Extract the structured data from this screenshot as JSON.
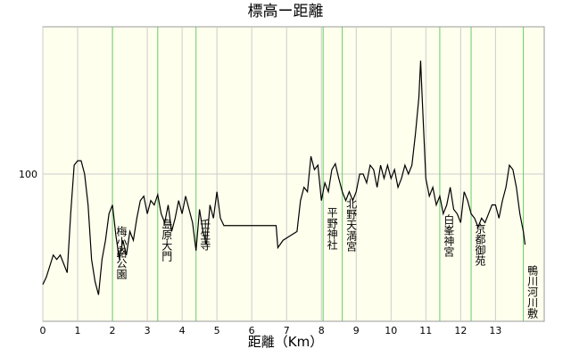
{
  "chart_data": {
    "type": "line",
    "title": "標高ー距離",
    "x_label": "距離（Km）",
    "xlim": [
      0,
      14.4
    ],
    "ylim": [
      0,
      200
    ],
    "xticks": [
      0,
      1,
      2,
      3,
      4,
      5,
      6,
      7,
      8,
      9,
      10,
      11,
      12,
      13
    ],
    "yticks": [
      100
    ],
    "grid": true,
    "series": [
      {
        "name": "標高",
        "color": "#000000",
        "x": [
          0,
          0.1,
          0.3,
          0.4,
          0.5,
          0.6,
          0.7,
          0.8,
          0.9,
          1.0,
          1.1,
          1.2,
          1.3,
          1.4,
          1.5,
          1.6,
          1.7,
          1.8,
          1.9,
          2.0,
          2.1,
          2.2,
          2.3,
          2.4,
          2.5,
          2.6,
          2.7,
          2.8,
          2.9,
          3.0,
          3.1,
          3.2,
          3.3,
          3.4,
          3.5,
          3.6,
          3.7,
          3.8,
          3.9,
          4.0,
          4.1,
          4.2,
          4.3,
          4.4,
          4.5,
          4.6,
          4.7,
          4.8,
          4.9,
          5.0,
          5.1,
          5.2,
          6.7,
          6.75,
          6.9,
          7.1,
          7.3,
          7.4,
          7.5,
          7.6,
          7.7,
          7.8,
          7.9,
          8.0,
          8.1,
          8.2,
          8.3,
          8.4,
          8.5,
          8.6,
          8.7,
          8.8,
          8.9,
          9.0,
          9.1,
          9.2,
          9.3,
          9.4,
          9.5,
          9.6,
          9.7,
          9.8,
          9.9,
          10.0,
          10.1,
          10.2,
          10.3,
          10.4,
          10.5,
          10.6,
          10.7,
          10.8,
          10.85,
          10.9,
          11.0,
          11.1,
          11.2,
          11.3,
          11.4,
          11.5,
          11.6,
          11.7,
          11.8,
          11.9,
          12.0,
          12.1,
          12.2,
          12.3,
          12.4,
          12.5,
          12.6,
          12.7,
          12.8,
          12.9,
          13.0,
          13.1,
          13.2,
          13.3,
          13.4,
          13.5,
          13.6,
          13.7,
          13.8,
          13.85
        ],
        "values": [
          25,
          30,
          45,
          42,
          45,
          39,
          33,
          73,
          106,
          109,
          109,
          100,
          79,
          42,
          27,
          18,
          42,
          55,
          73,
          79,
          58,
          42,
          55,
          45,
          61,
          55,
          70,
          82,
          85,
          73,
          82,
          79,
          86,
          73,
          67,
          79,
          61,
          70,
          82,
          73,
          85,
          76,
          67,
          48,
          76,
          61,
          52,
          79,
          70,
          88,
          70,
          65,
          65,
          50,
          55,
          58,
          61,
          82,
          91,
          88,
          112,
          103,
          106,
          82,
          94,
          88,
          103,
          107,
          97,
          88,
          82,
          88,
          82,
          88,
          100,
          100,
          94,
          106,
          103,
          91,
          106,
          97,
          106,
          97,
          103,
          91,
          97,
          106,
          100,
          106,
          127,
          152,
          177,
          149,
          97,
          85,
          91,
          79,
          85,
          73,
          79,
          91,
          76,
          73,
          67,
          88,
          82,
          73,
          70,
          64,
          70,
          67,
          73,
          79,
          79,
          70,
          82,
          91,
          106,
          103,
          91,
          73,
          61,
          52
        ]
      }
    ],
    "annotations": [
      {
        "label": "梅小路公園",
        "x": 2.0,
        "color": "#66cc66"
      },
      {
        "label": "島原大門",
        "x": 3.3,
        "color": "#66cc66"
      },
      {
        "label": "壬生寺",
        "x": 4.4,
        "color": "#66cc66"
      },
      {
        "label": "平野神社",
        "x": 8.05,
        "color": "#66cc66"
      },
      {
        "label": "北野天満宮",
        "x": 8.6,
        "color": "#66cc66"
      },
      {
        "label": "白峯神宮",
        "x": 11.4,
        "color": "#66cc66"
      },
      {
        "label": "京都御苑",
        "x": 12.3,
        "color": "#66cc66"
      },
      {
        "label": "鴨川河川敷",
        "x": 13.8,
        "color": "#66cc66"
      }
    ]
  }
}
